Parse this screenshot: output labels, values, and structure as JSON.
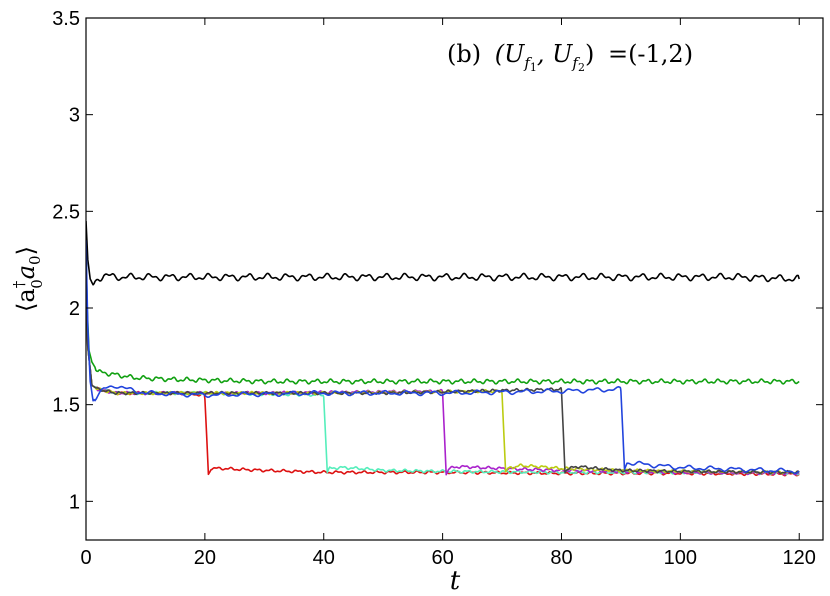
{
  "chart_data": {
    "type": "line",
    "title": "",
    "annotation": {
      "panel": "(b)",
      "pair": "(U",
      "sub_f": "f",
      "sub_1": "1",
      "sep": ", U",
      "sub_2": "2",
      "close": ")",
      "value": "=(-1,2)"
    },
    "xlabel": "t",
    "ylabel": "⟨a",
    "ylabel_dagger": "†",
    "ylabel_sub": "0",
    "ylabel_mid": "a",
    "ylabel_end": "⟩",
    "xlim": [
      0,
      124
    ],
    "ylim": [
      0.8,
      3.5
    ],
    "x_ticks": [
      0,
      20,
      40,
      60,
      80,
      100,
      120
    ],
    "x_tick_labels": [
      "0",
      "20",
      "40",
      "60",
      "80",
      "100",
      "120"
    ],
    "y_ticks": [
      1,
      1.5,
      2,
      2.5,
      3,
      3.5
    ],
    "y_tick_labels": [
      "1",
      "1.5",
      "2",
      "2.5",
      "3",
      "3.5"
    ],
    "grid": false,
    "legend": "none",
    "series": [
      {
        "color": "#000000",
        "points": [
          [
            0,
            2.45
          ],
          [
            0.3,
            2.25
          ],
          [
            0.7,
            2.15
          ],
          [
            1.2,
            2.12
          ],
          [
            2,
            2.15
          ],
          [
            3,
            2.17
          ],
          [
            5,
            2.16
          ],
          [
            10,
            2.16
          ],
          [
            20,
            2.16
          ],
          [
            30,
            2.16
          ],
          [
            40,
            2.16
          ],
          [
            50,
            2.16
          ],
          [
            60,
            2.16
          ],
          [
            70,
            2.16
          ],
          [
            80,
            2.16
          ],
          [
            90,
            2.16
          ],
          [
            100,
            2.16
          ],
          [
            110,
            2.16
          ],
          [
            120,
            2.15
          ]
        ],
        "amp": 0.012,
        "freq": 1.9
      },
      {
        "color": "#11a011",
        "points": [
          [
            0,
            2.3
          ],
          [
            0.2,
            2.0
          ],
          [
            0.5,
            1.78
          ],
          [
            1,
            1.72
          ],
          [
            2,
            1.67
          ],
          [
            4,
            1.66
          ],
          [
            8,
            1.64
          ],
          [
            15,
            1.63
          ],
          [
            30,
            1.62
          ],
          [
            60,
            1.62
          ],
          [
            90,
            1.62
          ],
          [
            120,
            1.62
          ]
        ],
        "amp": 0.008,
        "freq": 2.6
      },
      {
        "color": "#dd1111",
        "points": [
          [
            0,
            2.2
          ],
          [
            0.3,
            1.8
          ],
          [
            1,
            1.6
          ],
          [
            2,
            1.58
          ],
          [
            5,
            1.56
          ],
          [
            10,
            1.56
          ],
          [
            15,
            1.56
          ],
          [
            19.9,
            1.55
          ],
          [
            20,
            1.53
          ],
          [
            20.6,
            1.14
          ],
          [
            21,
            1.17
          ],
          [
            23,
            1.17
          ],
          [
            26,
            1.165
          ],
          [
            30,
            1.16
          ],
          [
            40,
            1.15
          ],
          [
            60,
            1.15
          ],
          [
            80,
            1.145
          ],
          [
            100,
            1.145
          ],
          [
            120,
            1.14
          ]
        ],
        "amp": 0.005,
        "freq": 2.8
      },
      {
        "color": "#55eebb",
        "points": [
          [
            0,
            2.2
          ],
          [
            0.3,
            1.8
          ],
          [
            1,
            1.6
          ],
          [
            2,
            1.58
          ],
          [
            5,
            1.56
          ],
          [
            20,
            1.56
          ],
          [
            39.9,
            1.55
          ],
          [
            40,
            1.54
          ],
          [
            40.6,
            1.15
          ],
          [
            41,
            1.17
          ],
          [
            43,
            1.175
          ],
          [
            46,
            1.17
          ],
          [
            50,
            1.16
          ],
          [
            60,
            1.155
          ],
          [
            80,
            1.15
          ],
          [
            100,
            1.15
          ],
          [
            120,
            1.145
          ]
        ],
        "amp": 0.005,
        "freq": 3.0
      },
      {
        "color": "#aa22cc",
        "points": [
          [
            0,
            2.2
          ],
          [
            0.3,
            1.8
          ],
          [
            1,
            1.6
          ],
          [
            2,
            1.58
          ],
          [
            5,
            1.56
          ],
          [
            30,
            1.56
          ],
          [
            59.9,
            1.57
          ],
          [
            60,
            1.56
          ],
          [
            60.6,
            1.14
          ],
          [
            61,
            1.17
          ],
          [
            63,
            1.18
          ],
          [
            66,
            1.175
          ],
          [
            70,
            1.17
          ],
          [
            80,
            1.16
          ],
          [
            100,
            1.15
          ],
          [
            120,
            1.145
          ]
        ],
        "amp": 0.005,
        "freq": 3.1
      },
      {
        "color": "#bbcc11",
        "points": [
          [
            0,
            2.2
          ],
          [
            0.3,
            1.8
          ],
          [
            1,
            1.6
          ],
          [
            2,
            1.58
          ],
          [
            5,
            1.56
          ],
          [
            40,
            1.56
          ],
          [
            69.9,
            1.57
          ],
          [
            70,
            1.56
          ],
          [
            70.6,
            1.15
          ],
          [
            71,
            1.17
          ],
          [
            73,
            1.185
          ],
          [
            76,
            1.18
          ],
          [
            80,
            1.17
          ],
          [
            90,
            1.16
          ],
          [
            100,
            1.155
          ],
          [
            120,
            1.15
          ]
        ],
        "amp": 0.005,
        "freq": 3.2
      },
      {
        "color": "#444444",
        "points": [
          [
            0,
            2.2
          ],
          [
            0.3,
            1.8
          ],
          [
            1,
            1.6
          ],
          [
            2,
            1.58
          ],
          [
            5,
            1.56
          ],
          [
            50,
            1.56
          ],
          [
            79.9,
            1.58
          ],
          [
            80,
            1.57
          ],
          [
            80.6,
            1.15
          ],
          [
            81,
            1.17
          ],
          [
            83,
            1.18
          ],
          [
            86,
            1.17
          ],
          [
            90,
            1.16
          ],
          [
            100,
            1.155
          ],
          [
            120,
            1.15
          ]
        ],
        "amp": 0.005,
        "freq": 3.3
      },
      {
        "color": "#2244dd",
        "points": [
          [
            0,
            2.35
          ],
          [
            0.3,
            1.9
          ],
          [
            0.7,
            1.62
          ],
          [
            1.2,
            1.52
          ],
          [
            2,
            1.55
          ],
          [
            3,
            1.58
          ],
          [
            5,
            1.6
          ],
          [
            7,
            1.58
          ],
          [
            10,
            1.56
          ],
          [
            20,
            1.55
          ],
          [
            40,
            1.56
          ],
          [
            60,
            1.56
          ],
          [
            80,
            1.57
          ],
          [
            89.9,
            1.58
          ],
          [
            90,
            1.57
          ],
          [
            90.6,
            1.17
          ],
          [
            91,
            1.2
          ],
          [
            93,
            1.195
          ],
          [
            96,
            1.185
          ],
          [
            100,
            1.175
          ],
          [
            110,
            1.165
          ],
          [
            120,
            1.155
          ]
        ],
        "amp": 0.008,
        "freq": 1.6
      }
    ]
  }
}
